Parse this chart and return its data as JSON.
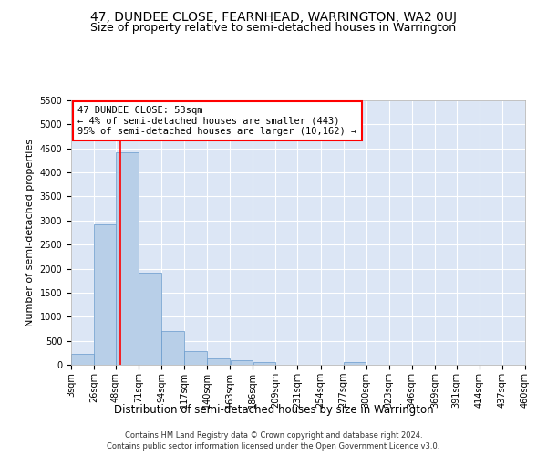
{
  "title": "47, DUNDEE CLOSE, FEARNHEAD, WARRINGTON, WA2 0UJ",
  "subtitle": "Size of property relative to semi-detached houses in Warrington",
  "xlabel": "Distribution of semi-detached houses by size in Warrington",
  "ylabel": "Number of semi-detached properties",
  "footer_line1": "Contains HM Land Registry data © Crown copyright and database right 2024.",
  "footer_line2": "Contains public sector information licensed under the Open Government Licence v3.0.",
  "annotation_text_line1": "47 DUNDEE CLOSE: 53sqm",
  "annotation_text_line2": "← 4% of semi-detached houses are smaller (443)",
  "annotation_text_line3": "95% of semi-detached houses are larger (10,162) →",
  "bar_edges": [
    3,
    26,
    48,
    71,
    94,
    117,
    140,
    163,
    186,
    209,
    231,
    254,
    277,
    300,
    323,
    346,
    369,
    391,
    414,
    437,
    460
  ],
  "bar_heights": [
    220,
    2920,
    4420,
    1920,
    710,
    280,
    130,
    100,
    60,
    0,
    0,
    0,
    55,
    0,
    0,
    0,
    0,
    0,
    0,
    0
  ],
  "bar_color": "#b8cfe8",
  "bar_edgecolor": "#6699cc",
  "red_line_x": 53,
  "ylim": [
    0,
    5500
  ],
  "yticks": [
    0,
    500,
    1000,
    1500,
    2000,
    2500,
    3000,
    3500,
    4000,
    4500,
    5000,
    5500
  ],
  "background_color": "#dce6f5",
  "grid_color": "#ffffff",
  "annotation_box_edgecolor": "red",
  "annotation_box_facecolor": "white",
  "title_fontsize": 10,
  "subtitle_fontsize": 9,
  "tick_label_fontsize": 7,
  "ylabel_fontsize": 8,
  "xlabel_fontsize": 8.5,
  "footer_fontsize": 6,
  "annotation_fontsize": 7.5
}
